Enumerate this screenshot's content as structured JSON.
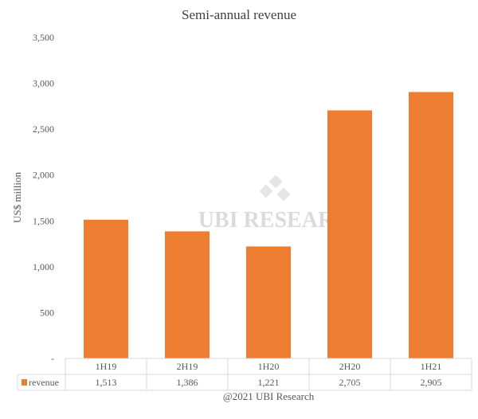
{
  "chart_data": {
    "type": "bar",
    "title": "Semi-annual revenue",
    "ylabel": "US$ million",
    "xlabel": "",
    "categories": [
      "1H19",
      "2H19",
      "1H20",
      "2H20",
      "1H21"
    ],
    "series": [
      {
        "name": "revenue",
        "values": [
          1513,
          1386,
          1221,
          2705,
          2905
        ],
        "labels": [
          "1,513",
          "1,386",
          "1,221",
          "2,705",
          "2,905"
        ],
        "color": "#ED7D31"
      }
    ],
    "ylim": [
      0,
      3500
    ],
    "yticks": [
      0,
      500,
      1000,
      1500,
      2000,
      2500,
      3000,
      3500
    ],
    "ytick_labels": [
      "-",
      "500",
      "1,000",
      "1,500",
      "2,000",
      "2,500",
      "3,000",
      "3,500"
    ],
    "grid": false,
    "data_table": true,
    "watermark": "UBI RESEARCH",
    "footer": "@2021 UBI Research"
  }
}
